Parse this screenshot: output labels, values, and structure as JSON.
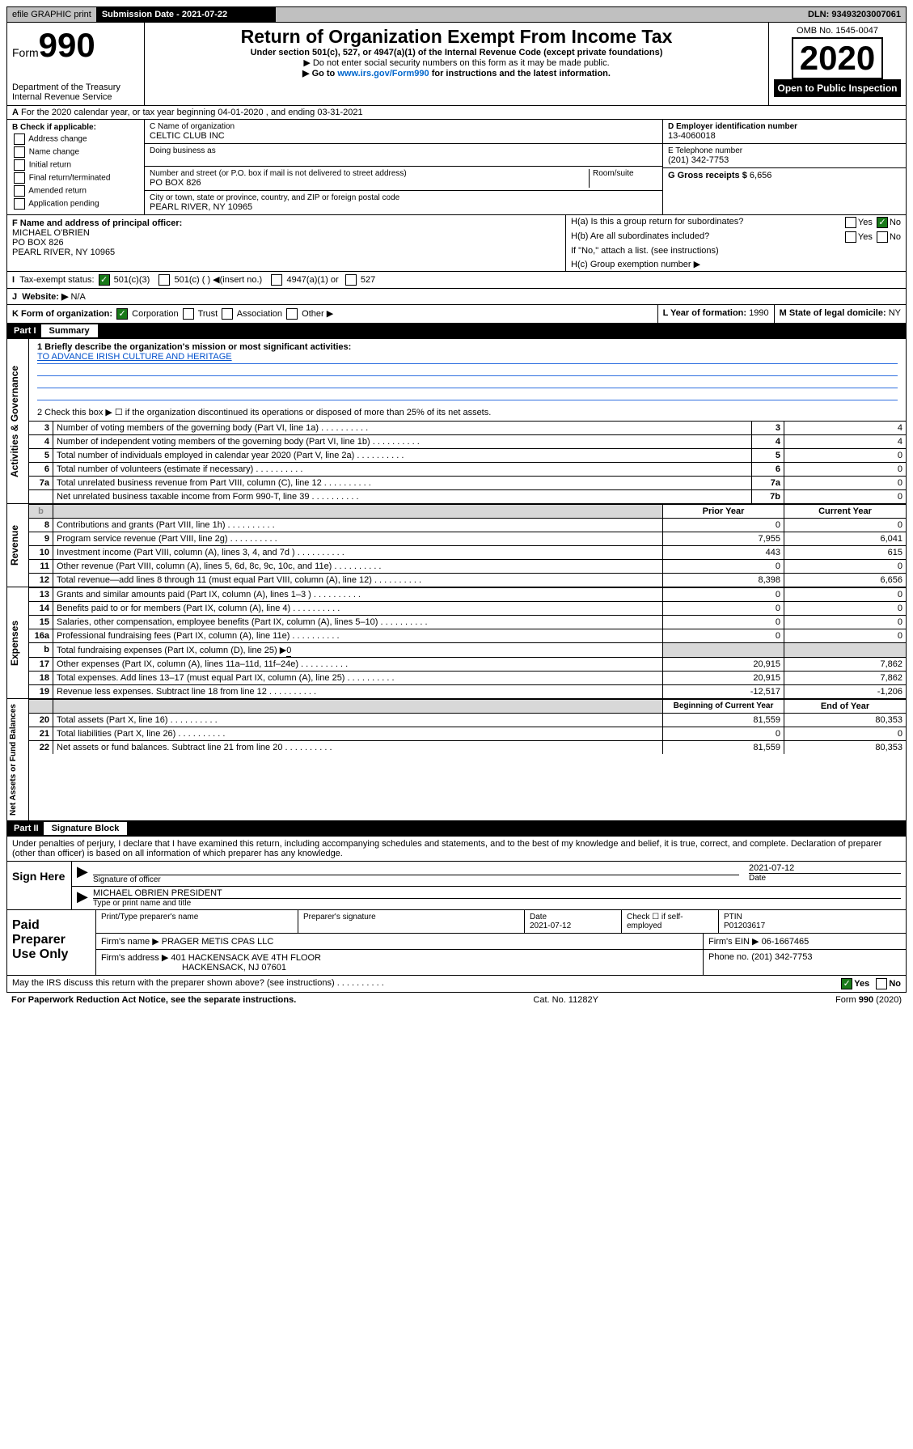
{
  "topbar": {
    "efile": "efile GRAPHIC print",
    "submission": "Submission Date - 2021-07-22",
    "dln": "DLN: 93493203007061"
  },
  "header": {
    "form_label": "Form",
    "form_num": "990",
    "dept": "Department of the Treasury",
    "irs": "Internal Revenue Service",
    "title": "Return of Organization Exempt From Income Tax",
    "sub1": "Under section 501(c), 527, or 4947(a)(1) of the Internal Revenue Code (except private foundations)",
    "sub2": "▶ Do not enter social security numbers on this form as it may be made public.",
    "sub3_pre": "▶ Go to ",
    "sub3_link": "www.irs.gov/Form990",
    "sub3_post": " for instructions and the latest information.",
    "omb": "OMB No. 1545-0047",
    "year": "2020",
    "open": "Open to Public Inspection"
  },
  "row_a": "For the 2020 calendar year, or tax year beginning 04-01-2020    , and ending 03-31-2021",
  "section_b": {
    "label": "B Check if applicable:",
    "opts": [
      "Address change",
      "Name change",
      "Initial return",
      "Final return/terminated",
      "Amended return",
      "Application pending"
    ]
  },
  "section_c": {
    "name_label": "C Name of organization",
    "name": "CELTIC CLUB INC",
    "dba_label": "Doing business as",
    "addr_label": "Number and street (or P.O. box if mail is not delivered to street address)",
    "room_label": "Room/suite",
    "addr": "PO BOX 826",
    "city_label": "City or town, state or province, country, and ZIP or foreign postal code",
    "city": "PEARL RIVER, NY  10965"
  },
  "section_d": {
    "label": "D Employer identification number",
    "value": "13-4060018"
  },
  "section_e": {
    "label": "E Telephone number",
    "value": "(201) 342-7753"
  },
  "section_g": {
    "label": "G Gross receipts $",
    "value": "6,656"
  },
  "section_f": {
    "label": "F  Name and address of principal officer:",
    "name": "MICHAEL O'BRIEN",
    "addr1": "PO BOX 826",
    "addr2": "PEARL RIVER, NY  10965"
  },
  "section_h": {
    "ha_pre": "H(a)  Is this a group return for subordinates?",
    "hb": "H(b)  Are all subordinates included?",
    "hb_note": "If \"No,\" attach a list. (see instructions)",
    "hc": "H(c)  Group exemption number ▶",
    "yes": "Yes",
    "no": "No"
  },
  "section_i": {
    "label": "Tax-exempt status:",
    "o1": "501(c)(3)",
    "o2": "501(c) (   ) ◀(insert no.)",
    "o3": "4947(a)(1) or",
    "o4": "527"
  },
  "section_j": {
    "label": "Website: ▶",
    "value": "N/A"
  },
  "section_k": {
    "label": "K Form of organization:",
    "o1": "Corporation",
    "o2": "Trust",
    "o3": "Association",
    "o4": "Other ▶"
  },
  "section_l": {
    "label": "L Year of formation:",
    "value": "1990"
  },
  "section_m": {
    "label": "M State of legal domicile:",
    "value": "NY"
  },
  "part1": "Part I",
  "part1_title": "Summary",
  "q1_label": "1  Briefly describe the organization's mission or most significant activities:",
  "q1_value": "TO ADVANCE IRISH CULTURE AND HERITAGE",
  "q2": "2    Check this box ▶ ☐  if the organization discontinued its operations or disposed of more than 25% of its net assets.",
  "rows_gov": [
    {
      "n": "3",
      "t": "Number of voting members of the governing body (Part VI, line 1a)",
      "c": "3",
      "v": "4"
    },
    {
      "n": "4",
      "t": "Number of independent voting members of the governing body (Part VI, line 1b)",
      "c": "4",
      "v": "4"
    },
    {
      "n": "5",
      "t": "Total number of individuals employed in calendar year 2020 (Part V, line 2a)",
      "c": "5",
      "v": "0"
    },
    {
      "n": "6",
      "t": "Total number of volunteers (estimate if necessary)",
      "c": "6",
      "v": "0"
    },
    {
      "n": "7a",
      "t": "Total unrelated business revenue from Part VIII, column (C), line 12",
      "c": "7a",
      "v": "0"
    },
    {
      "n": "",
      "t": "Net unrelated business taxable income from Form 990-T, line 39",
      "c": "7b",
      "v": "0"
    }
  ],
  "py_label": "Prior Year",
  "cy_label": "Current Year",
  "rows_rev": [
    {
      "n": "8",
      "t": "Contributions and grants (Part VIII, line 1h)",
      "p": "0",
      "c": "0"
    },
    {
      "n": "9",
      "t": "Program service revenue (Part VIII, line 2g)",
      "p": "7,955",
      "c": "6,041"
    },
    {
      "n": "10",
      "t": "Investment income (Part VIII, column (A), lines 3, 4, and 7d )",
      "p": "443",
      "c": "615"
    },
    {
      "n": "11",
      "t": "Other revenue (Part VIII, column (A), lines 5, 6d, 8c, 9c, 10c, and 11e)",
      "p": "0",
      "c": "0"
    },
    {
      "n": "12",
      "t": "Total revenue—add lines 8 through 11 (must equal Part VIII, column (A), line 12)",
      "p": "8,398",
      "c": "6,656"
    }
  ],
  "rows_exp": [
    {
      "n": "13",
      "t": "Grants and similar amounts paid (Part IX, column (A), lines 1–3 )",
      "p": "0",
      "c": "0"
    },
    {
      "n": "14",
      "t": "Benefits paid to or for members (Part IX, column (A), line 4)",
      "p": "0",
      "c": "0"
    },
    {
      "n": "15",
      "t": "Salaries, other compensation, employee benefits (Part IX, column (A), lines 5–10)",
      "p": "0",
      "c": "0"
    },
    {
      "n": "16a",
      "t": "Professional fundraising fees (Part IX, column (A), line 11e)",
      "p": "0",
      "c": "0"
    }
  ],
  "row_16b": {
    "n": "b",
    "t": "Total fundraising expenses (Part IX, column (D), line 25) ▶",
    "v": "0"
  },
  "rows_exp2": [
    {
      "n": "17",
      "t": "Other expenses (Part IX, column (A), lines 11a–11d, 11f–24e)",
      "p": "20,915",
      "c": "7,862"
    },
    {
      "n": "18",
      "t": "Total expenses. Add lines 13–17 (must equal Part IX, column (A), line 25)",
      "p": "20,915",
      "c": "7,862"
    },
    {
      "n": "19",
      "t": "Revenue less expenses. Subtract line 18 from line 12",
      "p": "-12,517",
      "c": "-1,206"
    }
  ],
  "boy_label": "Beginning of Current Year",
  "eoy_label": "End of Year",
  "rows_net": [
    {
      "n": "20",
      "t": "Total assets (Part X, line 16)",
      "p": "81,559",
      "c": "80,353"
    },
    {
      "n": "21",
      "t": "Total liabilities (Part X, line 26)",
      "p": "0",
      "c": "0"
    },
    {
      "n": "22",
      "t": "Net assets or fund balances. Subtract line 21 from line 20",
      "p": "81,559",
      "c": "80,353"
    }
  ],
  "side_labels": {
    "gov": "Activities & Governance",
    "rev": "Revenue",
    "exp": "Expenses",
    "net": "Net Assets or Fund Balances"
  },
  "part2": "Part II",
  "part2_title": "Signature Block",
  "perjury": "Under penalties of perjury, I declare that I have examined this return, including accompanying schedules and statements, and to the best of my knowledge and belief, it is true, correct, and complete. Declaration of preparer (other than officer) is based on all information of which preparer has any knowledge.",
  "sign_here": "Sign Here",
  "sig_date": "2021-07-12",
  "sig_date_label": "Date",
  "sig_officer_label": "Signature of officer",
  "sig_name": "MICHAEL OBRIEN  PRESIDENT",
  "sig_name_label": "Type or print name and title",
  "paid_prep": "Paid Preparer Use Only",
  "prep": {
    "h1": "Print/Type preparer's name",
    "h2": "Preparer's signature",
    "h3": "Date",
    "h3v": "2021-07-12",
    "h4": "Check ☐ if self-employed",
    "h5": "PTIN",
    "h5v": "P01203617",
    "firm_label": "Firm's name      ▶",
    "firm": "PRAGER METIS CPAS LLC",
    "ein_label": "Firm's EIN ▶",
    "ein": "06-1667465",
    "addr_label": "Firm's address ▶",
    "addr1": "401 HACKENSACK AVE 4TH FLOOR",
    "addr2": "HACKENSACK, NJ  07601",
    "phone_label": "Phone no.",
    "phone": "(201) 342-7753"
  },
  "discuss": "May the IRS discuss this return with the preparer shown above? (see instructions)",
  "paperwork": "For Paperwork Reduction Act Notice, see the separate instructions.",
  "catno": "Cat. No. 11282Y",
  "form_foot": "Form 990 (2020)",
  "b": "b"
}
